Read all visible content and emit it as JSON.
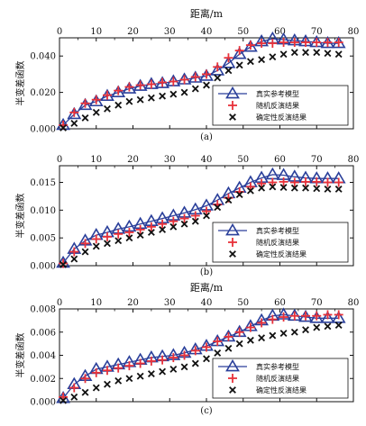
{
  "figure": {
    "xlabel_top": "距离/m",
    "colors": {
      "true_model": "#2a3f9a",
      "stochastic": "#e8323a",
      "deterministic": "#111111"
    }
  },
  "chart_data": [
    {
      "type": "line",
      "panel_label": "(a)",
      "xlabel": "距离/m",
      "ylabel": "半变差函数",
      "xlim": [
        0,
        80
      ],
      "ylim": [
        0,
        0.05
      ],
      "xticks": [
        0,
        10,
        20,
        30,
        40,
        50,
        60,
        70,
        80
      ],
      "xtick_labels": [
        "0",
        "10",
        "20",
        "30",
        "40",
        "50",
        "60",
        "70",
        "80"
      ],
      "yticks": [
        0,
        0.02,
        0.04
      ],
      "ytick_labels": [
        "0.000",
        "0.020",
        "0.040"
      ],
      "x": [
        1,
        4,
        7,
        10,
        13,
        16,
        19,
        22,
        25,
        28,
        31,
        34,
        37,
        40,
        43,
        46,
        49,
        52,
        55,
        58,
        61,
        64,
        67,
        70,
        73,
        76
      ],
      "legend_position": "lower-right",
      "series": [
        {
          "name": "真实参考模型",
          "key": "true_model",
          "marker": "triangle",
          "values": [
            0.002,
            0.008,
            0.013,
            0.015,
            0.018,
            0.02,
            0.022,
            0.0235,
            0.0245,
            0.025,
            0.026,
            0.027,
            0.028,
            0.029,
            0.032,
            0.036,
            0.041,
            0.045,
            0.048,
            0.0495,
            0.049,
            0.0485,
            0.048,
            0.0475,
            0.047,
            0.047
          ]
        },
        {
          "name": "随机反演结果",
          "key": "stochastic",
          "marker": "plus",
          "values": [
            0.002,
            0.009,
            0.014,
            0.016,
            0.0185,
            0.021,
            0.023,
            0.024,
            0.0245,
            0.0255,
            0.026,
            0.027,
            0.0285,
            0.03,
            0.034,
            0.039,
            0.043,
            0.046,
            0.047,
            0.047,
            0.0475,
            0.0475,
            0.0475,
            0.0475,
            0.0475,
            0.0475
          ]
        },
        {
          "name": "确定性反演结果",
          "key": "deterministic",
          "marker": "x",
          "values": [
            0.0005,
            0.003,
            0.006,
            0.009,
            0.011,
            0.013,
            0.015,
            0.016,
            0.017,
            0.018,
            0.019,
            0.02,
            0.022,
            0.024,
            0.028,
            0.032,
            0.035,
            0.037,
            0.038,
            0.0395,
            0.041,
            0.042,
            0.042,
            0.042,
            0.0415,
            0.041
          ]
        }
      ]
    },
    {
      "type": "line",
      "panel_label": "(b)",
      "xlabel": "",
      "ylabel": "半变差函数",
      "xlim": [
        0,
        80
      ],
      "ylim": [
        0,
        0.018
      ],
      "xticks": [
        0,
        10,
        20,
        30,
        40,
        50,
        60,
        70,
        80
      ],
      "xtick_labels": [
        "0",
        "10",
        "20",
        "30",
        "40",
        "50",
        "60",
        "70",
        "80"
      ],
      "yticks": [
        0,
        0.005,
        0.01,
        0.015
      ],
      "ytick_labels": [
        "0.000",
        "0.005",
        "0.010",
        "0.015"
      ],
      "x": [
        1,
        4,
        7,
        10,
        13,
        16,
        19,
        22,
        25,
        28,
        31,
        34,
        37,
        40,
        43,
        46,
        49,
        52,
        55,
        58,
        61,
        64,
        67,
        70,
        73,
        76
      ],
      "legend_position": "lower-right",
      "series": [
        {
          "name": "真实参考模型",
          "key": "true_model",
          "marker": "triangle",
          "values": [
            0.0005,
            0.003,
            0.0045,
            0.0055,
            0.006,
            0.0066,
            0.007,
            0.0075,
            0.008,
            0.0085,
            0.009,
            0.0095,
            0.0101,
            0.0108,
            0.0118,
            0.013,
            0.014,
            0.015,
            0.0158,
            0.0164,
            0.0163,
            0.016,
            0.0158,
            0.0157,
            0.0157,
            0.0157
          ]
        },
        {
          "name": "随机反演结果",
          "key": "stochastic",
          "marker": "plus",
          "values": [
            0.0004,
            0.0025,
            0.004,
            0.0048,
            0.0052,
            0.0057,
            0.006,
            0.0065,
            0.007,
            0.0075,
            0.008,
            0.0085,
            0.009,
            0.0098,
            0.011,
            0.0122,
            0.0133,
            0.0142,
            0.0148,
            0.015,
            0.0151,
            0.015,
            0.0151,
            0.0151,
            0.015,
            0.015
          ]
        },
        {
          "name": "确定性反演结果",
          "key": "deterministic",
          "marker": "x",
          "values": [
            0.0002,
            0.0012,
            0.0025,
            0.0035,
            0.004,
            0.0045,
            0.005,
            0.0055,
            0.006,
            0.0065,
            0.007,
            0.0075,
            0.008,
            0.009,
            0.0105,
            0.0118,
            0.0128,
            0.0135,
            0.014,
            0.0142,
            0.0141,
            0.014,
            0.014,
            0.0139,
            0.0138,
            0.0138
          ]
        }
      ]
    },
    {
      "type": "line",
      "panel_label": "(c)",
      "xlabel": "距离/m",
      "ylabel": "半变差函数",
      "xlim": [
        0,
        80
      ],
      "ylim": [
        0,
        0.008
      ],
      "xticks": [
        0,
        10,
        20,
        30,
        40,
        50,
        60,
        70,
        80
      ],
      "xtick_labels": [
        "0",
        "10",
        "20",
        "30",
        "40",
        "50",
        "60",
        "70",
        "80"
      ],
      "yticks": [
        0,
        0.002,
        0.004,
        0.006,
        0.008
      ],
      "ytick_labels": [
        "0.000",
        "0.002",
        "0.004",
        "0.006",
        "0.008"
      ],
      "x": [
        1,
        4,
        7,
        10,
        13,
        16,
        19,
        22,
        25,
        28,
        31,
        34,
        37,
        40,
        43,
        46,
        49,
        52,
        55,
        58,
        61,
        64,
        67,
        70,
        73,
        76
      ],
      "legend_position": "lower-right",
      "series": [
        {
          "name": "真实参考模型",
          "key": "true_model",
          "marker": "triangle",
          "values": [
            0.0003,
            0.0015,
            0.0022,
            0.0028,
            0.003,
            0.0032,
            0.0034,
            0.0036,
            0.0038,
            0.0039,
            0.004,
            0.0042,
            0.0045,
            0.0048,
            0.0052,
            0.0056,
            0.006,
            0.0065,
            0.007,
            0.0074,
            0.0075,
            0.0074,
            0.0073,
            0.0072,
            0.0072,
            0.0072
          ]
        },
        {
          "name": "随机反演结果",
          "key": "stochastic",
          "marker": "plus",
          "values": [
            0.0004,
            0.0012,
            0.002,
            0.0025,
            0.0027,
            0.0029,
            0.0031,
            0.0033,
            0.0035,
            0.0036,
            0.0038,
            0.004,
            0.0044,
            0.0047,
            0.0052,
            0.0056,
            0.006,
            0.0064,
            0.0068,
            0.0071,
            0.0073,
            0.0074,
            0.0074,
            0.0074,
            0.0075,
            0.0075
          ]
        },
        {
          "name": "确定性反演结果",
          "key": "deterministic",
          "marker": "x",
          "values": [
            0.0001,
            0.0004,
            0.0008,
            0.0012,
            0.0015,
            0.0018,
            0.002,
            0.0022,
            0.0024,
            0.0026,
            0.0028,
            0.003,
            0.0033,
            0.0037,
            0.0042,
            0.0046,
            0.005,
            0.0053,
            0.0055,
            0.0057,
            0.0059,
            0.006,
            0.0062,
            0.0064,
            0.0065,
            0.0066
          ]
        }
      ]
    }
  ]
}
